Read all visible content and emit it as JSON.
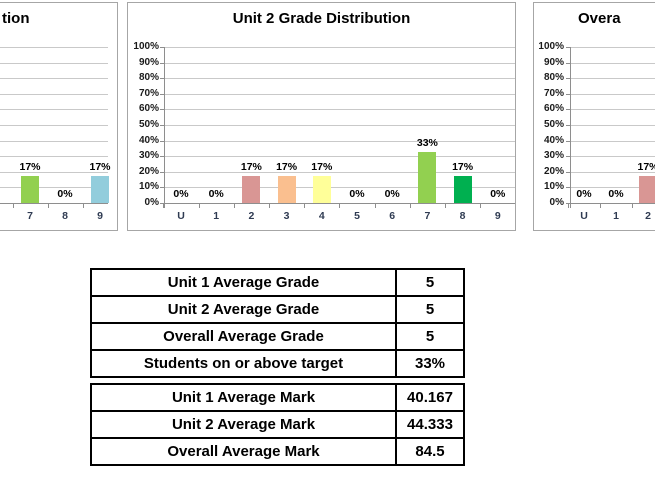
{
  "app": {
    "description": "Spreadsheet grade report with three grade-distribution bar charts and two summary tables"
  },
  "colors": {
    "background": "#ffffff",
    "gridline": "#c9c9c9",
    "axis": "#8e8e8e",
    "chart_border": "#a6a6a6",
    "table_border": "#000000",
    "category_label": "#2f3b52",
    "grade2": "#d99694",
    "grade3": "#fabf8f",
    "grade4": "#ffff99",
    "grade7": "#92d050",
    "grade8": "#00b050",
    "grade9": "#92cddc"
  },
  "chart_data": [
    {
      "type": "bar",
      "title_visible": "tion",
      "categories": [
        "7",
        "8",
        "9"
      ],
      "values": [
        17,
        0,
        17
      ],
      "value_labels": [
        "17%",
        "0%",
        "17%"
      ],
      "bar_colors": [
        "#92d050",
        null,
        "#92cddc"
      ],
      "ylim": [
        0,
        100
      ],
      "grid": true,
      "legend": "none"
    },
    {
      "type": "bar",
      "title": "Unit 2 Grade Distribution",
      "categories": [
        "U",
        "1",
        "2",
        "3",
        "4",
        "5",
        "6",
        "7",
        "8",
        "9"
      ],
      "values": [
        0,
        0,
        17,
        17,
        17,
        0,
        0,
        33,
        17,
        0
      ],
      "value_labels": [
        "0%",
        "0%",
        "17%",
        "17%",
        "17%",
        "0%",
        "0%",
        "33%",
        "17%",
        "0%"
      ],
      "bar_colors": [
        null,
        null,
        "#d99694",
        "#fabf8f",
        "#ffff99",
        null,
        null,
        "#92d050",
        "#00b050",
        null
      ],
      "y_ticks": [
        "100%",
        "90%",
        "80%",
        "70%",
        "60%",
        "50%",
        "40%",
        "30%",
        "20%",
        "10%",
        "0%"
      ],
      "ylim": [
        0,
        100
      ],
      "grid": true,
      "legend": "none"
    },
    {
      "type": "bar",
      "title_visible": "Overa",
      "categories": [
        "U",
        "1",
        "2"
      ],
      "values": [
        0,
        0,
        17
      ],
      "value_labels": [
        "0%",
        "0%",
        "17%"
      ],
      "bar_colors": [
        null,
        null,
        "#d99694"
      ],
      "y_ticks": [
        "100%",
        "90%",
        "80%",
        "70%",
        "60%",
        "50%",
        "40%",
        "30%",
        "20%",
        "10%",
        "0%"
      ],
      "ylim": [
        0,
        100
      ],
      "grid": true,
      "legend": "none"
    }
  ],
  "tables": [
    {
      "name": "grade-summary",
      "rows": [
        {
          "label": "Unit 1 Average Grade",
          "value": "5"
        },
        {
          "label": "Unit 2 Average Grade",
          "value": "5"
        },
        {
          "label": "Overall Average Grade",
          "value": "5"
        },
        {
          "label": "Students on or above target",
          "value": "33%"
        }
      ]
    },
    {
      "name": "mark-summary",
      "rows": [
        {
          "label": "Unit 1 Average Mark",
          "value": "40.167"
        },
        {
          "label": "Unit 2 Average Mark",
          "value": "44.333"
        },
        {
          "label": "Overall Average Mark",
          "value": "84.5"
        }
      ]
    }
  ]
}
